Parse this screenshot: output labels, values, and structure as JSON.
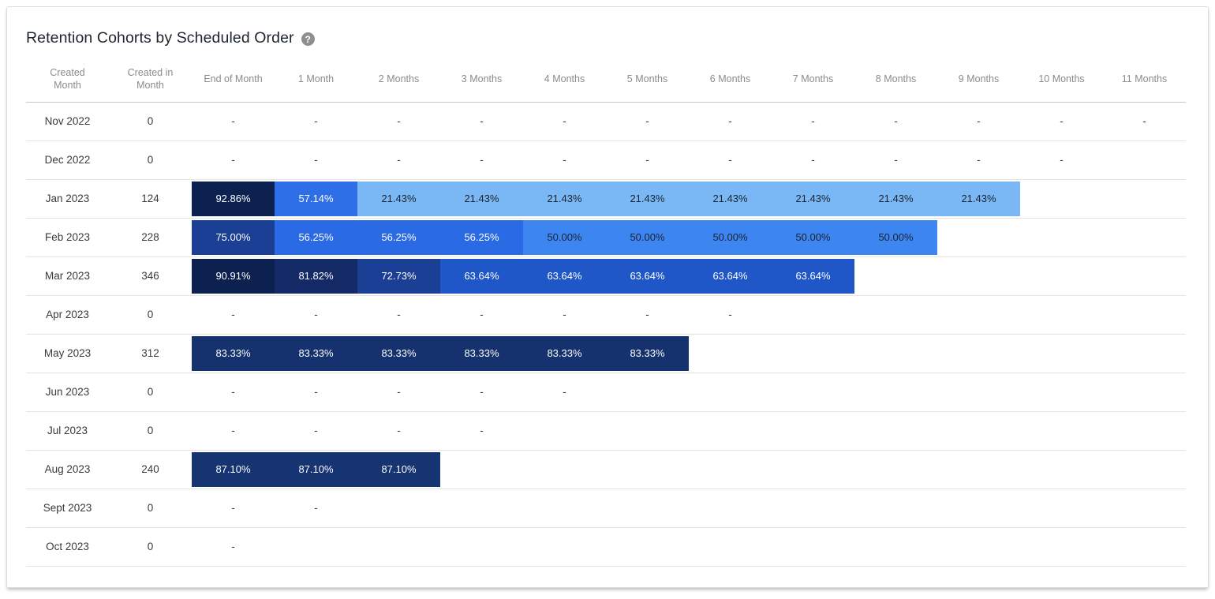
{
  "card": {
    "title": "Retention Cohorts by Scheduled Order",
    "help_icon": "question-mark-circle"
  },
  "chart_data": {
    "type": "heatmap",
    "title": "Retention Cohorts by Scheduled Order",
    "columns": [
      "Created Month",
      "Created in Month",
      "End of Month",
      "1 Month",
      "2 Months",
      "3 Months",
      "4 Months",
      "5 Months",
      "6 Months",
      "7 Months",
      "8 Months",
      "9 Months",
      "10 Months",
      "11 Months"
    ],
    "no_data_marker": "-",
    "rows": [
      {
        "created_month": "Nov 2022",
        "created_in_month": "0",
        "values": [
          "-",
          "-",
          "-",
          "-",
          "-",
          "-",
          "-",
          "-",
          "-",
          "-",
          "-",
          "-"
        ]
      },
      {
        "created_month": "Dec 2022",
        "created_in_month": "0",
        "values": [
          "-",
          "-",
          "-",
          "-",
          "-",
          "-",
          "-",
          "-",
          "-",
          "-",
          "-",
          ""
        ]
      },
      {
        "created_month": "Jan 2023",
        "created_in_month": "124",
        "values": [
          "92.86%",
          "57.14%",
          "21.43%",
          "21.43%",
          "21.43%",
          "21.43%",
          "21.43%",
          "21.43%",
          "21.43%",
          "21.43%",
          "",
          ""
        ]
      },
      {
        "created_month": "Feb 2023",
        "created_in_month": "228",
        "values": [
          "75.00%",
          "56.25%",
          "56.25%",
          "56.25%",
          "50.00%",
          "50.00%",
          "50.00%",
          "50.00%",
          "50.00%",
          "",
          "",
          ""
        ]
      },
      {
        "created_month": "Mar 2023",
        "created_in_month": "346",
        "values": [
          "90.91%",
          "81.82%",
          "72.73%",
          "63.64%",
          "63.64%",
          "63.64%",
          "63.64%",
          "63.64%",
          "",
          "",
          "",
          ""
        ]
      },
      {
        "created_month": "Apr 2023",
        "created_in_month": "0",
        "values": [
          "-",
          "-",
          "-",
          "-",
          "-",
          "-",
          "-",
          "",
          "",
          "",
          "",
          ""
        ]
      },
      {
        "created_month": "May 2023",
        "created_in_month": "312",
        "values": [
          "83.33%",
          "83.33%",
          "83.33%",
          "83.33%",
          "83.33%",
          "83.33%",
          "",
          "",
          "",
          "",
          "",
          ""
        ]
      },
      {
        "created_month": "Jun 2023",
        "created_in_month": "0",
        "values": [
          "-",
          "-",
          "-",
          "-",
          "-",
          "",
          "",
          "",
          "",
          "",
          "",
          ""
        ]
      },
      {
        "created_month": "Jul 2023",
        "created_in_month": "0",
        "values": [
          "-",
          "-",
          "-",
          "-",
          "",
          "",
          "",
          "",
          "",
          "",
          "",
          ""
        ]
      },
      {
        "created_month": "Aug 2023",
        "created_in_month": "240",
        "values": [
          "87.10%",
          "87.10%",
          "87.10%",
          "",
          "",
          "",
          "",
          "",
          "",
          "",
          "",
          ""
        ]
      },
      {
        "created_month": "Sept 2023",
        "created_in_month": "0",
        "values": [
          "-",
          "-",
          "",
          "",
          "",
          "",
          "",
          "",
          "",
          "",
          "",
          ""
        ]
      },
      {
        "created_month": "Oct 2023",
        "created_in_month": "0",
        "values": [
          "-",
          "",
          "",
          "",
          "",
          "",
          "",
          "",
          "",
          "",
          "",
          ""
        ]
      }
    ],
    "cell_styles": {
      "92.86%": {
        "bg": "#0d2150",
        "fg": "#ffffff"
      },
      "90.91%": {
        "bg": "#0d2150",
        "fg": "#ffffff"
      },
      "87.10%": {
        "bg": "#163471",
        "fg": "#ffffff"
      },
      "83.33%": {
        "bg": "#15316e",
        "fg": "#ffffff"
      },
      "81.82%": {
        "bg": "#132a66",
        "fg": "#ffffff"
      },
      "75.00%": {
        "bg": "#1a3f94",
        "fg": "#ffffff"
      },
      "72.73%": {
        "bg": "#1a3f94",
        "fg": "#ffffff"
      },
      "63.64%": {
        "bg": "#2057c8",
        "fg": "#ffffff"
      },
      "57.14%": {
        "bg": "#2e6fe8",
        "fg": "#ffffff"
      },
      "56.25%": {
        "bg": "#2a6ae4",
        "fg": "#ffffff"
      },
      "50.00%": {
        "bg": "#3d85f1",
        "fg": "#1b2430"
      },
      "21.43%": {
        "bg": "#7ab8f5",
        "fg": "#1b2430"
      }
    }
  }
}
